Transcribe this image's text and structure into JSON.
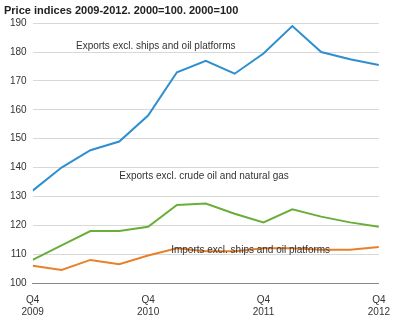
{
  "chart_data": {
    "type": "line",
    "title": "Price indices 2009-2012. 2000=100. 2000=100",
    "categories": [
      "Q4 2009",
      null,
      null,
      null,
      "Q4 2010",
      null,
      null,
      null,
      "Q4 2011",
      null,
      null,
      null,
      "Q4 2012"
    ],
    "series": [
      {
        "name": "Exports excl. ships and oil platforms",
        "color": "#2e8fd0",
        "values": [
          132,
          140,
          146,
          149,
          158,
          173,
          177,
          172.5,
          179.5,
          189,
          180,
          177.5,
          175.5
        ]
      },
      {
        "name": "Exports excl. crude oil and natural gas",
        "color": "#6aae3a",
        "values": [
          108,
          113,
          118,
          118,
          119.5,
          127,
          127.5,
          124,
          121,
          125.5,
          123,
          121,
          119.5
        ]
      },
      {
        "name": "Imports excl. ships and oil platforms",
        "color": "#e8802a",
        "values": [
          106,
          104.5,
          108,
          106.5,
          109.5,
          112,
          111,
          111,
          112,
          112,
          111.5,
          111.5,
          112.5
        ]
      }
    ],
    "ylim": [
      100,
      190
    ],
    "yticks": [
      100,
      110,
      120,
      130,
      140,
      150,
      160,
      170,
      180,
      190
    ],
    "grid": true
  }
}
